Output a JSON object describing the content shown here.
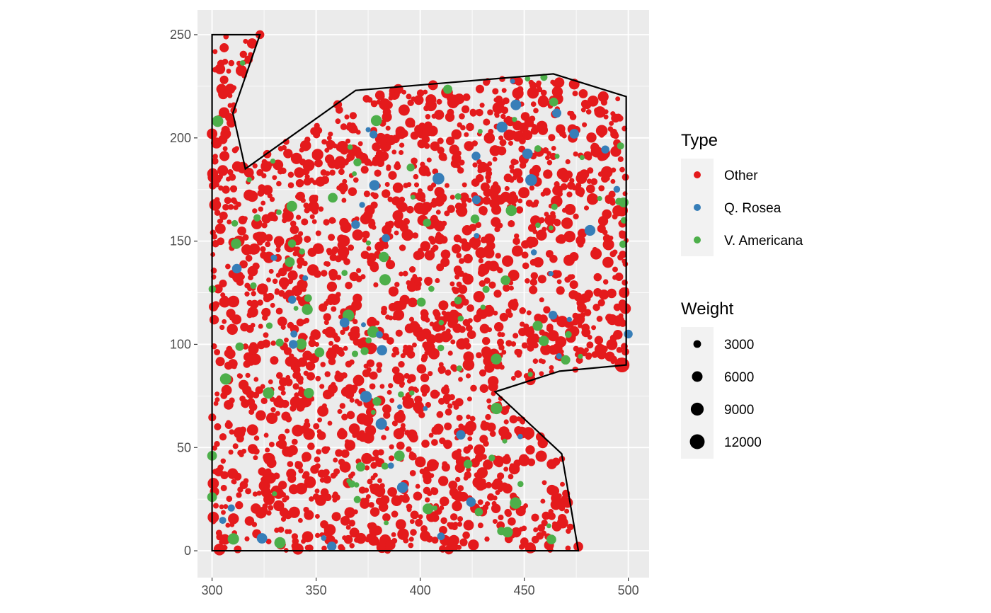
{
  "chart_data": {
    "type": "scatter",
    "title": "",
    "xlabel": "",
    "ylabel": "",
    "xlim": [
      293,
      510
    ],
    "ylim": [
      -13,
      262
    ],
    "grid": true,
    "x_ticks": [
      300,
      350,
      400,
      450,
      500
    ],
    "y_ticks": [
      0,
      50,
      100,
      150,
      200,
      250
    ],
    "x_tick_labels": [
      "300",
      "350",
      "400",
      "450",
      "500"
    ],
    "y_tick_labels": [
      "0",
      "50",
      "100",
      "150",
      "200",
      "250"
    ],
    "legend_position": "right",
    "colors": {
      "panel": "#EBEBEB",
      "grid_major": "#FFFFFF",
      "Other": "#E41A1C",
      "Q. Rosea": "#377EB8",
      "V. Americana": "#4DAF4A",
      "boundary": "#000000"
    },
    "legend_type": {
      "title": "Type",
      "entries": [
        {
          "label": "Other",
          "color": "#E41A1C"
        },
        {
          "label": "Q. Rosea",
          "color": "#377EB8"
        },
        {
          "label": "V. Americana",
          "color": "#4DAF4A"
        }
      ]
    },
    "legend_weight": {
      "title": "Weight",
      "entries": [
        {
          "label": "3000",
          "value": 3000
        },
        {
          "label": "6000",
          "value": 6000
        },
        {
          "label": "9000",
          "value": 9000
        },
        {
          "label": "12000",
          "value": 12000
        }
      ]
    },
    "boundary_polygon": [
      [
        300,
        0
      ],
      [
        476,
        0
      ],
      [
        468,
        47
      ],
      [
        436,
        77
      ],
      [
        467,
        87
      ],
      [
        499,
        90
      ],
      [
        499,
        220
      ],
      [
        464,
        231
      ],
      [
        369,
        223
      ],
      [
        316,
        185
      ],
      [
        310,
        212
      ],
      [
        323,
        250
      ],
      [
        300,
        250
      ]
    ],
    "sample_points": [
      {
        "x": 300,
        "y": 202,
        "weight": 6000,
        "type": "Other"
      },
      {
        "x": 304,
        "y": 156,
        "weight": 6000,
        "type": "Other"
      },
      {
        "x": 497,
        "y": 90,
        "weight": 12000,
        "type": "Other"
      },
      {
        "x": 498,
        "y": 125,
        "weight": 6000,
        "type": "Other"
      },
      {
        "x": 452,
        "y": 57,
        "weight": 8000,
        "type": "Other"
      },
      {
        "x": 474,
        "y": 226,
        "weight": 6000,
        "type": "Other"
      },
      {
        "x": 323,
        "y": 250,
        "weight": 4000,
        "type": "Other"
      },
      {
        "x": 476,
        "y": 2,
        "weight": 5000,
        "type": "Other"
      },
      {
        "x": 300,
        "y": 26,
        "weight": 5000,
        "type": "V. Americana"
      },
      {
        "x": 300,
        "y": 46,
        "weight": 5000,
        "type": "V. Americana"
      },
      {
        "x": 390,
        "y": 46,
        "weight": 6000,
        "type": "V. Americana"
      },
      {
        "x": 441,
        "y": 131,
        "weight": 5000,
        "type": "V. Americana"
      },
      {
        "x": 442,
        "y": 9,
        "weight": 6000,
        "type": "V. Americana"
      },
      {
        "x": 423,
        "y": 42,
        "weight": 4000,
        "type": "V. Americana"
      },
      {
        "x": 358,
        "y": 171,
        "weight": 5000,
        "type": "V. Americana"
      },
      {
        "x": 500,
        "y": 105,
        "weight": 4000,
        "type": "Q. Rosea"
      },
      {
        "x": 446,
        "y": 216,
        "weight": 6000,
        "type": "Q. Rosea"
      },
      {
        "x": 474,
        "y": 202,
        "weight": 5000,
        "type": "Q. Rosea"
      },
      {
        "x": 427,
        "y": 170,
        "weight": 4000,
        "type": "Q. Rosea"
      },
      {
        "x": 369,
        "y": 158,
        "weight": 4000,
        "type": "Q. Rosea"
      },
      {
        "x": 339,
        "y": 100,
        "weight": 4000,
        "type": "Q. Rosea"
      },
      {
        "x": 410,
        "y": 7,
        "weight": 3000,
        "type": "Q. Rosea"
      }
    ]
  }
}
